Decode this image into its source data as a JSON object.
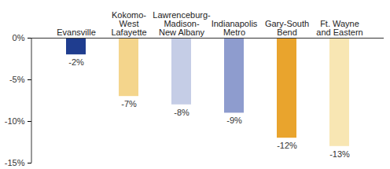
{
  "chart_data": {
    "type": "bar",
    "categories": [
      "Evansville",
      "Kokomo-\nWest\nLafayette",
      "Lawrenceburg-\nMadison-\nNew Albany",
      "Indianapolis\nMetro",
      "Gary-South\nBend",
      "Ft. Wayne\nand Eastern"
    ],
    "values": [
      -2,
      -7,
      -8,
      -9,
      -12,
      -13
    ],
    "value_labels": [
      "-2%",
      "-7%",
      "-8%",
      "-9%",
      "-12%",
      "-13%"
    ],
    "colors": [
      "#1f3d8f",
      "#f4d58c",
      "#c5cde6",
      "#8e9cce",
      "#e9a42d",
      "#f8e6b3"
    ],
    "ylim": [
      -15,
      0
    ],
    "yticks": [
      {
        "value": 0,
        "label": "0%"
      },
      {
        "value": -5,
        "label": "-5%"
      },
      {
        "value": -10,
        "label": "-10%"
      },
      {
        "value": -15,
        "label": "-15%"
      }
    ],
    "data_labels": true,
    "grid": false
  }
}
